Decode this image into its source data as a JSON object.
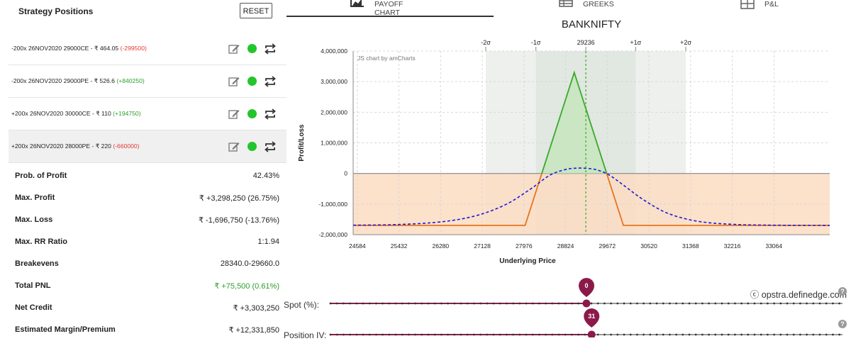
{
  "positions_panel": {
    "title": "Strategy Positions",
    "reset_label": "RESET",
    "rows": [
      {
        "leg": "-200x  26NOV2020  29000CE  - ₹ 464.05",
        "pnl": "(-299500)",
        "pnl_sign": "neg",
        "highlighted": false
      },
      {
        "leg": "-200x  26NOV2020  29000PE  - ₹ 526.6",
        "pnl": "(+840250)",
        "pnl_sign": "pos",
        "highlighted": false
      },
      {
        "leg": "+200x  26NOV2020  30000CE  - ₹ 110",
        "pnl": "(+194750)",
        "pnl_sign": "pos",
        "highlighted": false
      },
      {
        "leg": "+200x  26NOV2020  28000PE  - ₹ 220",
        "pnl": "(-660000)",
        "pnl_sign": "neg",
        "highlighted": true
      }
    ],
    "icons": [
      "edit-icon",
      "status-dot-icon",
      "swap-icon"
    ],
    "status_color": "#22c52b"
  },
  "stats": [
    {
      "label": "Prob. of Profit",
      "value": "42.43%",
      "green": false
    },
    {
      "label": "Max. Profit",
      "value": "₹ +3,298,250 (26.75%)",
      "green": false
    },
    {
      "label": "Max. Loss",
      "value": "₹ -1,696,750 (-13.76%)",
      "green": false
    },
    {
      "label": "Max. RR Ratio",
      "value": "1:1.94",
      "green": false
    },
    {
      "label": "Breakevens",
      "value": "28340.0-29660.0",
      "green": false
    },
    {
      "label": "Total PNL",
      "value": "₹ +75,500 (0.61%)",
      "green": true
    },
    {
      "label": "Net Credit",
      "value": "₹ +3,303,250",
      "green": false
    },
    {
      "label": "Estimated Margin/Premium",
      "value": "₹ +12,331,850",
      "green": false
    }
  ],
  "tabs": [
    {
      "label": "PAYOFF CHART",
      "icon": "area-chart-icon",
      "active": true
    },
    {
      "label": "GREEKS",
      "icon": "table-icon",
      "active": false
    },
    {
      "label": "P&L",
      "icon": "grid-icon",
      "active": false
    }
  ],
  "chart_data": {
    "type": "line",
    "title": "BANKNIFTY",
    "xlabel": "Underlying Price",
    "ylabel": "Profit/Loss",
    "watermark": "JS chart by amCharts",
    "xlim": [
      24500,
      34200
    ],
    "ylim": [
      -2000000,
      4000000
    ],
    "x_ticks": [
      24584,
      25432,
      26280,
      27128,
      27976,
      28824,
      29672,
      30520,
      31368,
      32216,
      33064
    ],
    "y_ticks": [
      4000000,
      3000000,
      2000000,
      1000000,
      0,
      -1000000,
      -2000000
    ],
    "y_tick_labels": [
      "4,000,000",
      "3,000,000",
      "2,000,000",
      "1,000,000",
      "0",
      "-1,000,000",
      "-2,000,000"
    ],
    "sigma_labels": [
      {
        "label": "-2σ",
        "x": 27200
      },
      {
        "label": "-1σ",
        "x": 28220
      },
      {
        "label": "29236",
        "x": 29236
      },
      {
        "label": "+1σ",
        "x": 30250
      },
      {
        "label": "+2σ",
        "x": 31270
      }
    ],
    "spot": 29236,
    "band_2sigma": [
      27200,
      31270
    ],
    "band_1sigma": [
      28220,
      30250
    ],
    "series": [
      {
        "kind": "payoff_at_expiry",
        "color_profit": "#3aaa2a",
        "color_loss": "#e8731e",
        "x": [
          24500,
          28000,
          29000,
          30000,
          34200
        ],
        "y": [
          -1696750,
          -1696750,
          3298250,
          -1696750,
          -1696750
        ]
      },
      {
        "kind": "payoff_today",
        "color": "#1a1ad6",
        "dashed": true,
        "x": [
          24500,
          25400,
          26300,
          27000,
          27600,
          28100,
          28500,
          28800,
          29000,
          29236,
          29450,
          29700,
          30000,
          30400,
          30900,
          31500,
          32200,
          33000,
          34200
        ],
        "y": [
          -1690000,
          -1670000,
          -1580000,
          -1380000,
          -1020000,
          -520000,
          -60000,
          120000,
          170000,
          170000,
          120000,
          -40000,
          -380000,
          -850000,
          -1300000,
          -1560000,
          -1660000,
          -1690000,
          -1696750
        ]
      }
    ],
    "colors": {
      "profit_fill": "#c8e6c0",
      "loss_fill": "#fbdcc2",
      "band_outer": "#edf0ed",
      "band_inner": "#e1e7e1",
      "spot_line": "#3aaa2a"
    }
  },
  "credit": "ⓒ opstra.definedge.com",
  "sliders": [
    {
      "label": "Spot (%):",
      "value": "0",
      "position": 0.5,
      "color": "#8b1a4a"
    },
    {
      "label": "Position IV:",
      "value": "31",
      "position": 0.51,
      "color": "#8b1a4a"
    }
  ],
  "help_symbol": "?"
}
